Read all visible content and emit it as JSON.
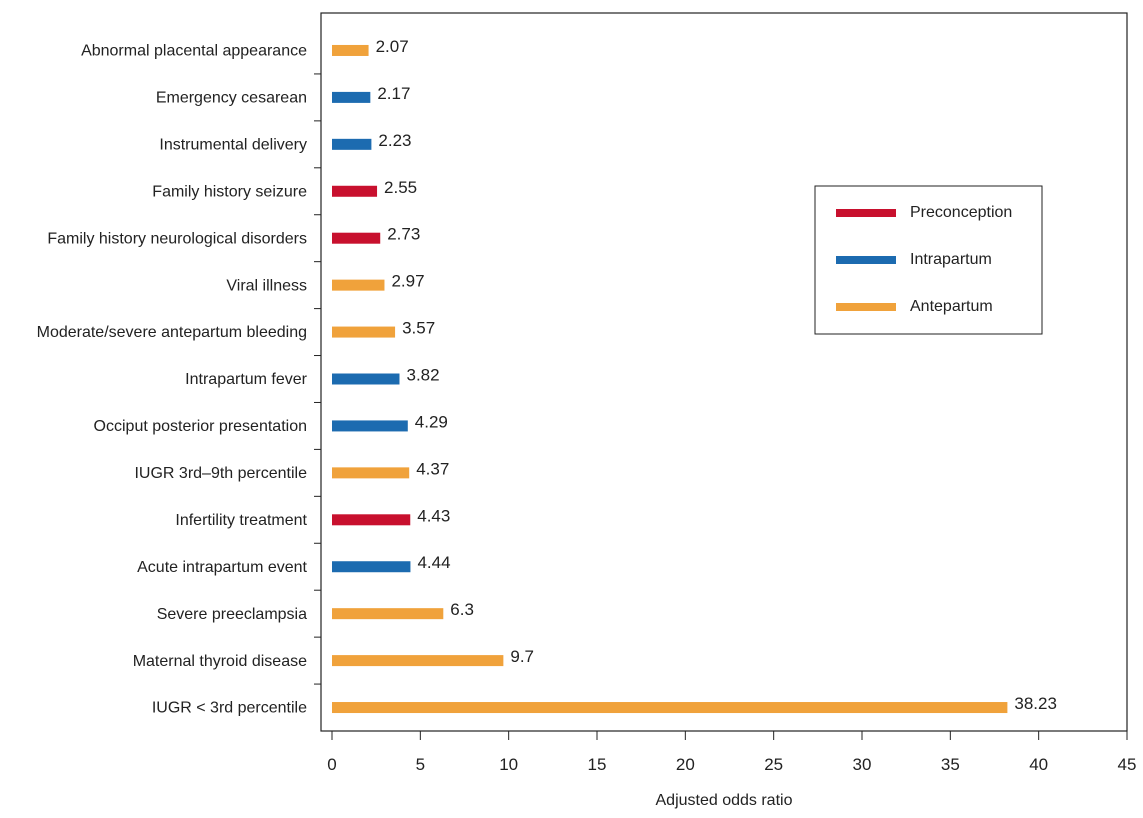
{
  "chart_data": {
    "type": "bar",
    "orientation": "horizontal",
    "xlabel": "Adjusted odds ratio",
    "xlim": [
      0,
      45
    ],
    "xticks": [
      0,
      5,
      10,
      15,
      20,
      25,
      30,
      35,
      40,
      45
    ],
    "grid": false,
    "legend_position": "right",
    "legend": [
      {
        "name": "Preconception",
        "color": "#c8102e"
      },
      {
        "name": "Intrapartum",
        "color": "#1c6bb0"
      },
      {
        "name": "Antepartum",
        "color": "#f0a23b"
      }
    ],
    "categories": [
      {
        "label": "Abnormal placental appearance",
        "value": 2.07,
        "value_label": "2.07",
        "group": "Antepartum"
      },
      {
        "label": "Emergency cesarean",
        "value": 2.17,
        "value_label": "2.17",
        "group": "Intrapartum"
      },
      {
        "label": "Instrumental delivery",
        "value": 2.23,
        "value_label": "2.23",
        "group": "Intrapartum"
      },
      {
        "label": "Family history seizure",
        "value": 2.55,
        "value_label": "2.55",
        "group": "Preconception"
      },
      {
        "label": "Family history neurological disorders",
        "value": 2.73,
        "value_label": "2.73",
        "group": "Preconception"
      },
      {
        "label": "Viral illness",
        "value": 2.97,
        "value_label": "2.97",
        "group": "Antepartum"
      },
      {
        "label": "Moderate/severe antepartum bleeding",
        "value": 3.57,
        "value_label": "3.57",
        "group": "Antepartum"
      },
      {
        "label": "Intrapartum fever",
        "value": 3.82,
        "value_label": "3.82",
        "group": "Intrapartum"
      },
      {
        "label": "Occiput posterior presentation",
        "value": 4.29,
        "value_label": "4.29",
        "group": "Intrapartum"
      },
      {
        "label": "IUGR 3rd–9th percentile",
        "value": 4.37,
        "value_label": "4.37",
        "group": "Antepartum"
      },
      {
        "label": "Infertility treatment",
        "value": 4.43,
        "value_label": "4.43",
        "group": "Preconception"
      },
      {
        "label": "Acute intrapartum event",
        "value": 4.44,
        "value_label": "4.44",
        "group": "Intrapartum"
      },
      {
        "label": "Severe preeclampsia",
        "value": 6.3,
        "value_label": "6.3",
        "group": "Antepartum"
      },
      {
        "label": "Maternal thyroid disease",
        "value": 9.7,
        "value_label": "9.7",
        "group": "Antepartum"
      },
      {
        "label": "IUGR < 3rd percentile",
        "value": 38.23,
        "value_label": "38.23",
        "group": "Antepartum"
      }
    ]
  }
}
